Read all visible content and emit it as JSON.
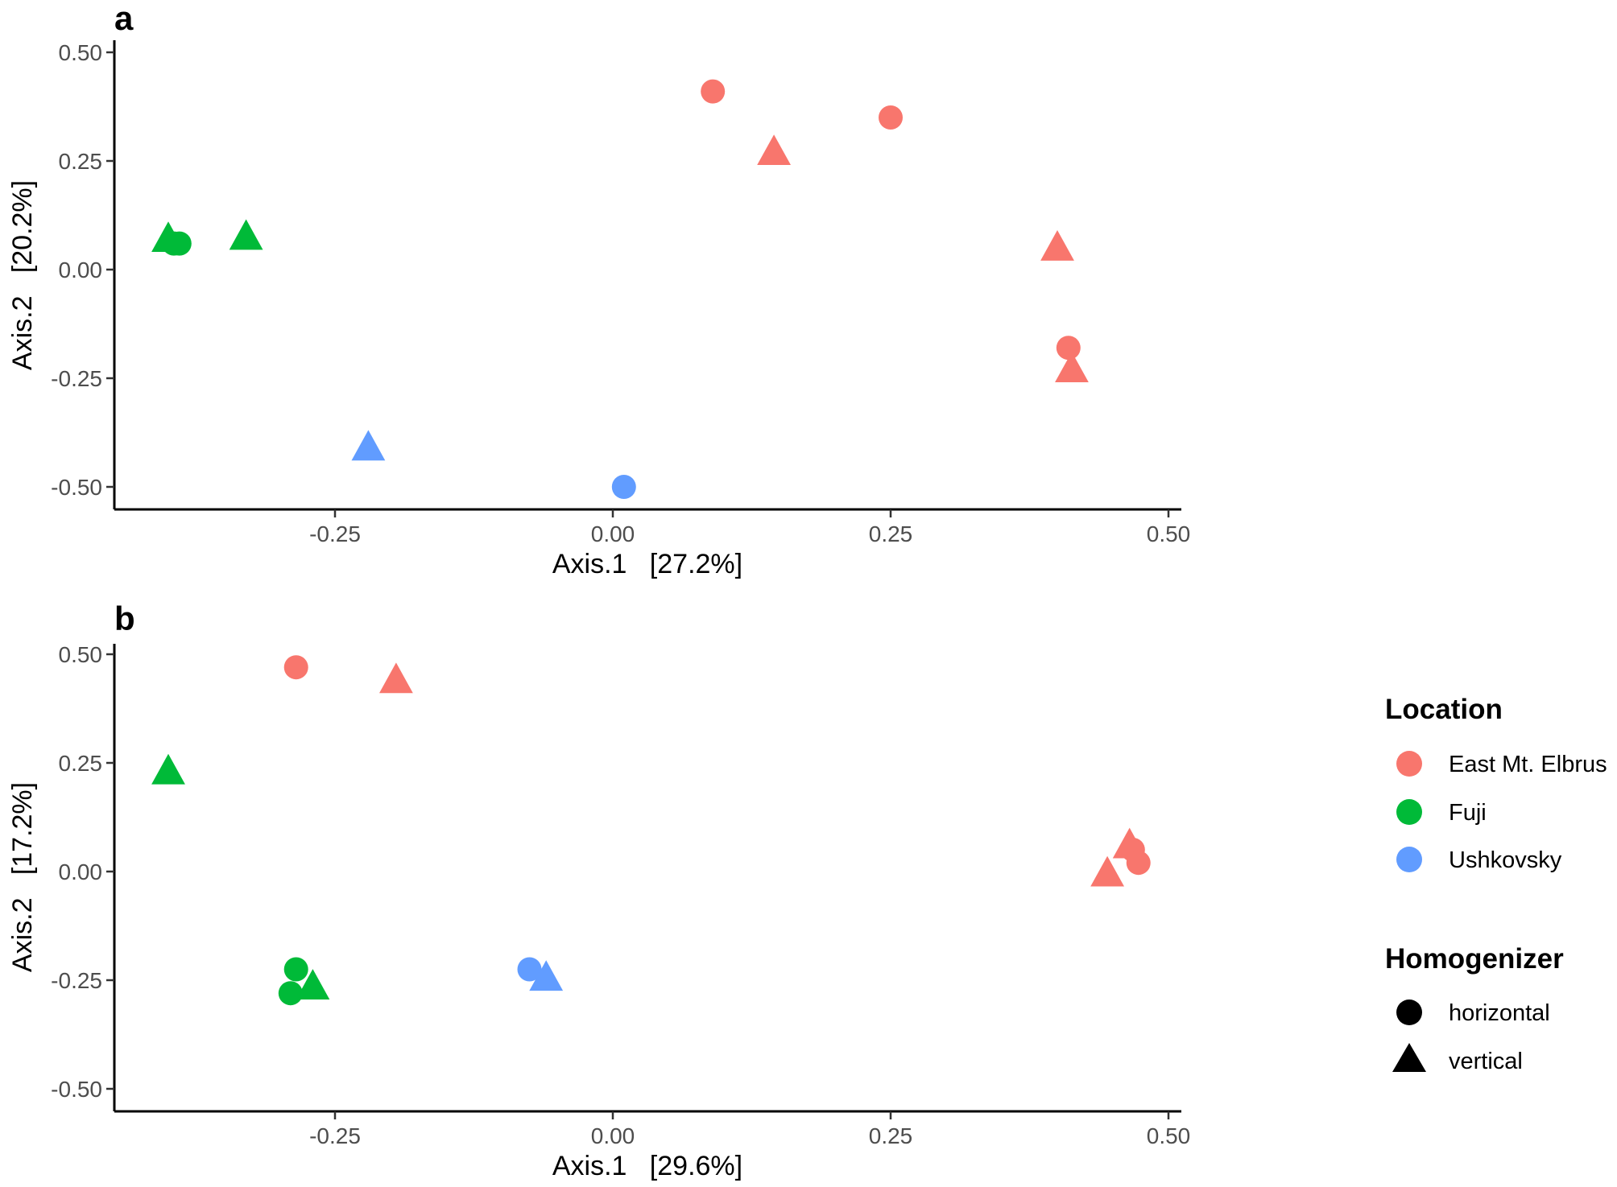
{
  "colors": {
    "East Mt. Elbrus": "#F8766D",
    "Fuji": "#00BA38",
    "Ushkovsky": "#619CFF",
    "axis": "#000000",
    "tick_text": "#4d4d4d"
  },
  "legend": {
    "location_title": "Location",
    "location_items": [
      "East Mt. Elbrus",
      "Fuji",
      "Ushkovsky"
    ],
    "homogenizer_title": "Homogenizer",
    "homogenizer_items": [
      "horizontal",
      "vertical"
    ],
    "homogenizer_shapes": [
      "circle",
      "triangle"
    ]
  },
  "chart_data": [
    {
      "type": "scatter",
      "panel": "a",
      "xlabel": "Axis.1   [27.2%]",
      "ylabel": "Axis.2   [20.2%]",
      "xlim": [
        -0.44,
        0.52
      ],
      "ylim": [
        -0.55,
        0.52
      ],
      "xticks": [
        -0.25,
        0.0,
        0.25,
        0.5
      ],
      "xtick_labels": [
        "-0.25",
        "0.00",
        "0.25",
        "0.50"
      ],
      "yticks": [
        -0.5,
        -0.25,
        0.0,
        0.25,
        0.5
      ],
      "ytick_labels": [
        "-0.50",
        "-0.25",
        "0.00",
        "0.25",
        "0.50"
      ],
      "points": [
        {
          "x": 0.09,
          "y": 0.41,
          "location": "East Mt. Elbrus",
          "homogenizer": "horizontal"
        },
        {
          "x": 0.25,
          "y": 0.35,
          "location": "East Mt. Elbrus",
          "homogenizer": "horizontal"
        },
        {
          "x": 0.145,
          "y": 0.27,
          "location": "East Mt. Elbrus",
          "homogenizer": "vertical"
        },
        {
          "x": 0.4,
          "y": 0.05,
          "location": "East Mt. Elbrus",
          "homogenizer": "vertical"
        },
        {
          "x": 0.41,
          "y": -0.18,
          "location": "East Mt. Elbrus",
          "homogenizer": "horizontal"
        },
        {
          "x": 0.413,
          "y": -0.23,
          "location": "East Mt. Elbrus",
          "homogenizer": "vertical"
        },
        {
          "x": -0.4,
          "y": 0.07,
          "location": "Fuji",
          "homogenizer": "vertical"
        },
        {
          "x": -0.395,
          "y": 0.06,
          "location": "Fuji",
          "homogenizer": "horizontal"
        },
        {
          "x": -0.39,
          "y": 0.06,
          "location": "Fuji",
          "homogenizer": "horizontal"
        },
        {
          "x": -0.33,
          "y": 0.075,
          "location": "Fuji",
          "homogenizer": "vertical"
        },
        {
          "x": -0.22,
          "y": -0.41,
          "location": "Ushkovsky",
          "homogenizer": "vertical"
        },
        {
          "x": 0.01,
          "y": -0.5,
          "location": "Ushkovsky",
          "homogenizer": "horizontal"
        }
      ]
    },
    {
      "type": "scatter",
      "panel": "b",
      "xlabel": "Axis.1   [29.6%]",
      "ylabel": "Axis.2   [17.2%]",
      "xlim": [
        -0.44,
        0.52
      ],
      "ylim": [
        -0.55,
        0.52
      ],
      "xticks": [
        -0.25,
        0.0,
        0.25,
        0.5
      ],
      "xtick_labels": [
        "-0.25",
        "0.00",
        "0.25",
        "0.50"
      ],
      "yticks": [
        -0.5,
        -0.25,
        0.0,
        0.25,
        0.5
      ],
      "ytick_labels": [
        "-0.50",
        "-0.25",
        "0.00",
        "0.25",
        "0.50"
      ],
      "points": [
        {
          "x": -0.285,
          "y": 0.47,
          "location": "East Mt. Elbrus",
          "homogenizer": "horizontal"
        },
        {
          "x": -0.195,
          "y": 0.44,
          "location": "East Mt. Elbrus",
          "homogenizer": "vertical"
        },
        {
          "x": 0.465,
          "y": 0.06,
          "location": "East Mt. Elbrus",
          "homogenizer": "vertical"
        },
        {
          "x": 0.468,
          "y": 0.05,
          "location": "East Mt. Elbrus",
          "homogenizer": "horizontal"
        },
        {
          "x": 0.473,
          "y": 0.02,
          "location": "East Mt. Elbrus",
          "homogenizer": "horizontal"
        },
        {
          "x": 0.445,
          "y": -0.005,
          "location": "East Mt. Elbrus",
          "homogenizer": "vertical"
        },
        {
          "x": -0.4,
          "y": 0.23,
          "location": "Fuji",
          "homogenizer": "vertical"
        },
        {
          "x": -0.285,
          "y": -0.225,
          "location": "Fuji",
          "homogenizer": "horizontal"
        },
        {
          "x": -0.27,
          "y": -0.265,
          "location": "Fuji",
          "homogenizer": "vertical"
        },
        {
          "x": -0.29,
          "y": -0.28,
          "location": "Fuji",
          "homogenizer": "horizontal"
        },
        {
          "x": -0.075,
          "y": -0.225,
          "location": "Ushkovsky",
          "homogenizer": "horizontal"
        },
        {
          "x": -0.06,
          "y": -0.245,
          "location": "Ushkovsky",
          "homogenizer": "vertical"
        }
      ]
    }
  ]
}
